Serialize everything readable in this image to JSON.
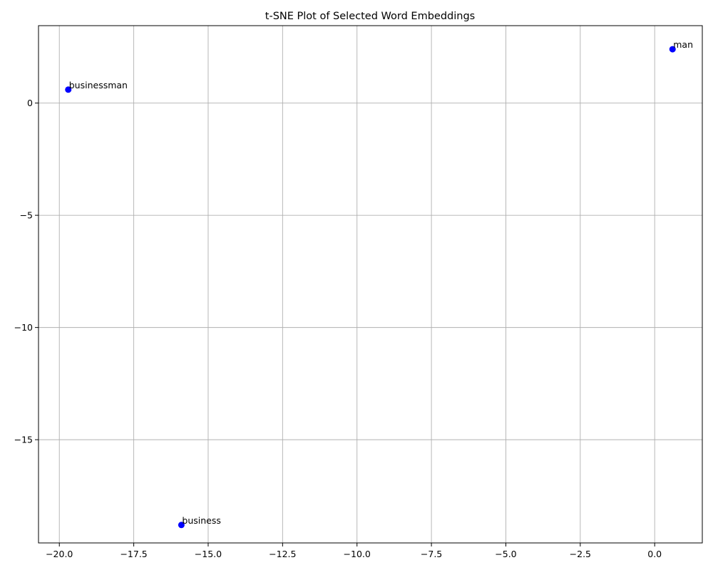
{
  "chart_data": {
    "type": "scatter",
    "title": "t-SNE Plot of Selected Word Embeddings",
    "xlabel": "",
    "ylabel": "",
    "xlim": [
      -20.7,
      1.6
    ],
    "ylim": [
      -19.6,
      3.45
    ],
    "grid": true,
    "marker_color": "#0000ff",
    "x_ticks": [
      {
        "value": -20.0,
        "label": "−20.0"
      },
      {
        "value": -17.5,
        "label": "−17.5"
      },
      {
        "value": -15.0,
        "label": "−15.0"
      },
      {
        "value": -12.5,
        "label": "−12.5"
      },
      {
        "value": -10.0,
        "label": "−10.0"
      },
      {
        "value": -7.5,
        "label": "−7.5"
      },
      {
        "value": -5.0,
        "label": "−5.0"
      },
      {
        "value": -2.5,
        "label": "−2.5"
      },
      {
        "value": 0.0,
        "label": "0.0"
      }
    ],
    "y_ticks": [
      {
        "value": 0,
        "label": "0"
      },
      {
        "value": -5,
        "label": "−5"
      },
      {
        "value": -10,
        "label": "−10"
      },
      {
        "value": -15,
        "label": "−15"
      }
    ],
    "points": [
      {
        "label": "businessman",
        "x": -19.7,
        "y": 0.6
      },
      {
        "label": "man",
        "x": 0.6,
        "y": 2.4
      },
      {
        "label": "business",
        "x": -15.9,
        "y": -18.8
      }
    ]
  }
}
